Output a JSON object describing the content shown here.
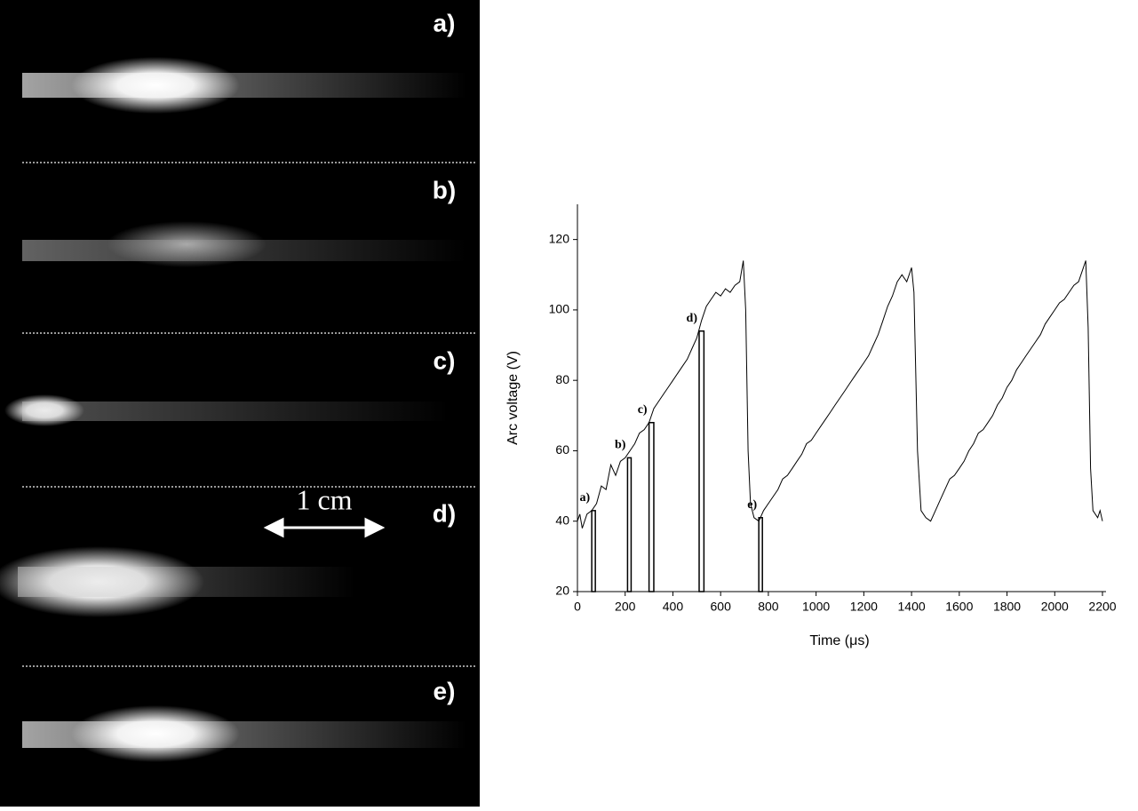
{
  "panels": {
    "labels": [
      "a)",
      "b)",
      "c)",
      "d)",
      "e)"
    ],
    "scale_label": "1 cm"
  },
  "chart_data": {
    "type": "line",
    "x_label": "Time (μs)",
    "y_label": "Arc voltage (V)",
    "xlim": [
      0,
      2200
    ],
    "ylim": [
      20,
      130
    ],
    "xticks": [
      0,
      200,
      400,
      600,
      800,
      1000,
      1200,
      1400,
      1600,
      1800,
      2000,
      2200
    ],
    "yticks": [
      20,
      40,
      60,
      80,
      100,
      120
    ],
    "color": "#000000",
    "x": [
      0,
      10,
      20,
      40,
      60,
      80,
      100,
      120,
      140,
      160,
      180,
      200,
      220,
      240,
      260,
      280,
      300,
      320,
      340,
      360,
      380,
      400,
      420,
      440,
      460,
      480,
      500,
      520,
      540,
      560,
      580,
      600,
      620,
      640,
      660,
      680,
      695,
      705,
      715,
      725,
      740,
      760,
      780,
      800,
      820,
      840,
      860,
      880,
      900,
      920,
      940,
      960,
      980,
      1000,
      1020,
      1040,
      1060,
      1080,
      1100,
      1120,
      1140,
      1160,
      1180,
      1200,
      1220,
      1240,
      1260,
      1280,
      1300,
      1320,
      1340,
      1360,
      1380,
      1400,
      1410,
      1425,
      1440,
      1460,
      1480,
      1500,
      1520,
      1540,
      1560,
      1580,
      1600,
      1620,
      1640,
      1660,
      1680,
      1700,
      1720,
      1740,
      1760,
      1780,
      1800,
      1820,
      1840,
      1860,
      1880,
      1900,
      1920,
      1940,
      1960,
      1980,
      2000,
      2020,
      2040,
      2060,
      2080,
      2100,
      2120,
      2130,
      2140,
      2150,
      2160,
      2180,
      2190,
      2200
    ],
    "values": [
      40,
      42,
      38,
      42,
      43,
      45,
      50,
      49,
      56,
      53,
      57,
      58,
      60,
      62,
      65,
      66,
      68,
      72,
      74,
      76,
      78,
      80,
      82,
      84,
      86,
      89,
      92,
      97,
      101,
      103,
      105,
      104,
      106,
      105,
      107,
      108,
      114,
      100,
      60,
      45,
      41,
      40,
      43,
      45,
      47,
      49,
      52,
      53,
      55,
      57,
      59,
      62,
      63,
      65,
      67,
      69,
      71,
      73,
      75,
      77,
      79,
      81,
      83,
      85,
      87,
      90,
      93,
      97,
      101,
      104,
      108,
      110,
      108,
      112,
      105,
      60,
      43,
      41,
      40,
      43,
      46,
      49,
      52,
      53,
      55,
      57,
      60,
      62,
      65,
      66,
      68,
      70,
      73,
      75,
      78,
      80,
      83,
      85,
      87,
      89,
      91,
      93,
      96,
      98,
      100,
      102,
      103,
      105,
      107,
      108,
      112,
      114,
      95,
      55,
      43,
      41,
      43,
      40
    ],
    "markers": [
      {
        "label": "a)",
        "x": [
          60,
          75
        ],
        "value": 43
      },
      {
        "label": "b)",
        "x": [
          210,
          225
        ],
        "value": 58
      },
      {
        "label": "c)",
        "x": [
          300,
          320
        ],
        "value": 68
      },
      {
        "label": "d)",
        "x": [
          510,
          530
        ],
        "value": 94
      },
      {
        "label": "e)",
        "x": [
          760,
          775
        ],
        "value": 41
      }
    ]
  }
}
